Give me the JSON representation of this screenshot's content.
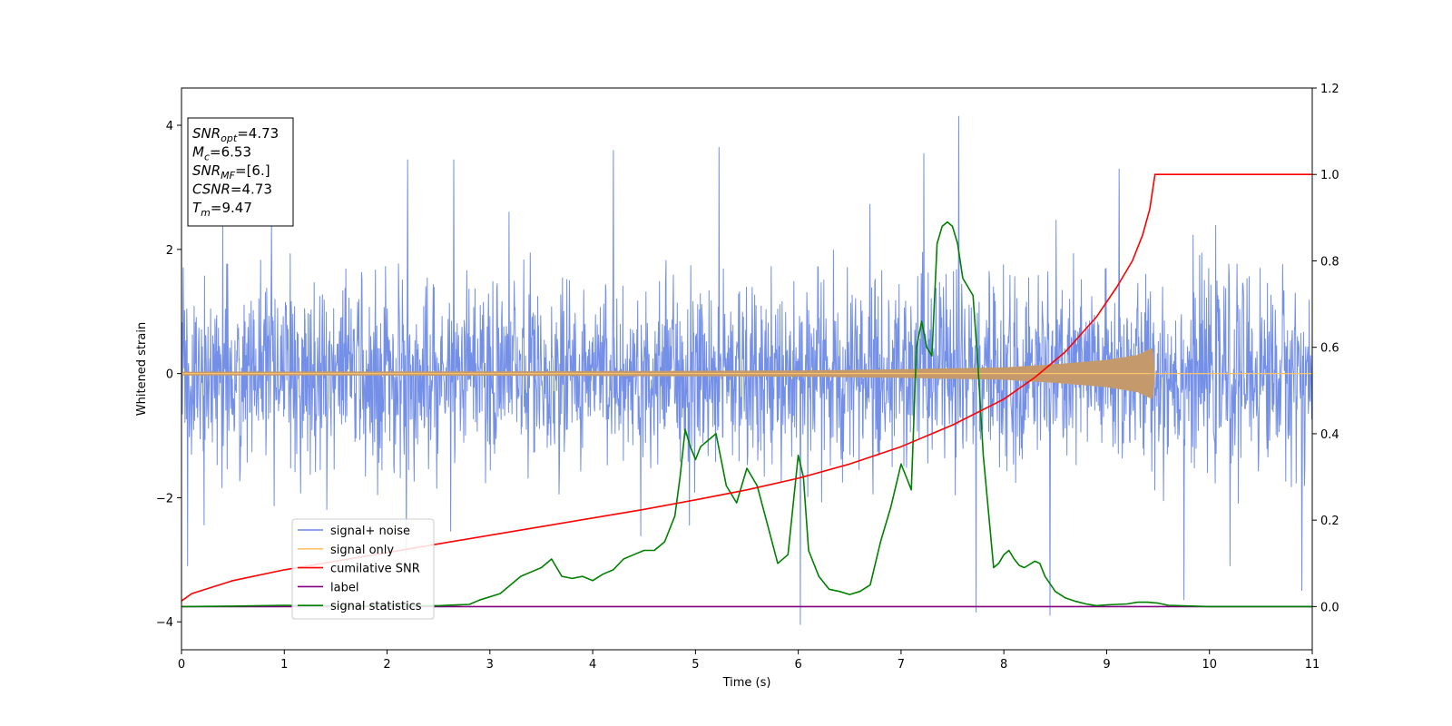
{
  "chart_data": {
    "type": "line",
    "xlabel": "Time (s)",
    "ylabel": "Whitened strain",
    "xlim": [
      0,
      11
    ],
    "ylim": [
      -4.45,
      4.6
    ],
    "y2lim": [
      -0.1,
      1.2
    ],
    "xticks": [
      "0",
      "1",
      "2",
      "3",
      "4",
      "5",
      "6",
      "7",
      "8",
      "9",
      "10",
      "11"
    ],
    "yticks": [
      "−4",
      "−2",
      "0",
      "2",
      "4"
    ],
    "y2ticks": [
      "0.0",
      "0.2",
      "0.4",
      "0.6",
      "0.8",
      "1.0",
      "1.2"
    ],
    "grid": false,
    "legend_position": "lower-left",
    "colors": {
      "noise": "#6b89e6",
      "signal": "#fdc36b",
      "signal_fill": "#c49a6c",
      "cumulative": "#ff0000",
      "label": "#800080",
      "statistics": "#008000"
    },
    "annotation": [
      {
        "sym": "SNR",
        "sub": "opt",
        "rest": "=4.73"
      },
      {
        "sym": "M",
        "sub": "c",
        "rest": "=6.53"
      },
      {
        "sym": "SNR",
        "sub": "MF",
        "rest": "=[6.]"
      },
      {
        "sym": "CSNR",
        "sub": "",
        "rest": "=4.73"
      },
      {
        "sym": "T",
        "sub": "m",
        "rest": "=9.47"
      }
    ],
    "merger_time": 9.47,
    "series": [
      {
        "name": "signal+ noise",
        "axis": "left",
        "style": "noise",
        "std": 0.75,
        "spikes": [
          {
            "x": 0.06,
            "y": -3.1
          },
          {
            "x": 0.4,
            "y": 2.5
          },
          {
            "x": 2.2,
            "y": 3.45
          },
          {
            "x": 2.65,
            "y": 3.45
          },
          {
            "x": 5.23,
            "y": 3.65
          },
          {
            "x": 6.02,
            "y": -4.05
          },
          {
            "x": 7.22,
            "y": 3.55
          },
          {
            "x": 7.56,
            "y": 4.15
          },
          {
            "x": 7.73,
            "y": -3.85
          },
          {
            "x": 8.45,
            "y": -3.9
          },
          {
            "x": 9.75,
            "y": -3.65
          },
          {
            "x": 10.2,
            "y": -3.1
          },
          {
            "x": 10.9,
            "y": -3.5
          },
          {
            "x": 4.2,
            "y": 3.6
          },
          {
            "x": 9.12,
            "y": 3.3
          }
        ]
      },
      {
        "name": "signal only",
        "axis": "left",
        "style": "signal",
        "envelope": [
          [
            0.0,
            0.03
          ],
          [
            3.0,
            0.035
          ],
          [
            6.0,
            0.05
          ],
          [
            7.0,
            0.07
          ],
          [
            8.0,
            0.1
          ],
          [
            8.5,
            0.15
          ],
          [
            9.0,
            0.22
          ],
          [
            9.3,
            0.3
          ],
          [
            9.45,
            0.42
          ],
          [
            9.47,
            0.0
          ],
          [
            11.0,
            0.0
          ]
        ]
      },
      {
        "name": "cumilative SNR",
        "axis": "right",
        "style": "cumulative",
        "x": [
          0,
          0.1,
          0.5,
          1,
          1.5,
          2,
          2.5,
          3,
          3.5,
          4,
          4.5,
          5,
          5.5,
          6,
          6.5,
          7,
          7.5,
          8,
          8.3,
          8.6,
          8.9,
          9.1,
          9.25,
          9.35,
          9.42,
          9.47,
          11
        ],
        "y": [
          0.013,
          0.03,
          0.06,
          0.085,
          0.105,
          0.125,
          0.145,
          0.165,
          0.185,
          0.205,
          0.225,
          0.247,
          0.27,
          0.297,
          0.33,
          0.37,
          0.42,
          0.48,
          0.53,
          0.59,
          0.67,
          0.74,
          0.8,
          0.86,
          0.92,
          1.0,
          1.0
        ]
      },
      {
        "name": "label",
        "axis": "right",
        "style": "label",
        "x": [
          0,
          11
        ],
        "y": [
          0,
          0
        ]
      },
      {
        "name": "signal statistics",
        "axis": "right",
        "style": "statistics",
        "x": [
          0,
          0.5,
          1,
          1.5,
          2,
          2.5,
          2.8,
          2.9,
          3.1,
          3.2,
          3.3,
          3.4,
          3.5,
          3.6,
          3.7,
          3.8,
          3.9,
          4.0,
          4.1,
          4.2,
          4.3,
          4.4,
          4.5,
          4.6,
          4.7,
          4.8,
          4.85,
          4.9,
          4.95,
          5.0,
          5.05,
          5.1,
          5.2,
          5.3,
          5.4,
          5.5,
          5.6,
          5.7,
          5.8,
          5.9,
          6.0,
          6.05,
          6.1,
          6.2,
          6.3,
          6.4,
          6.5,
          6.6,
          6.7,
          6.8,
          6.9,
          7.0,
          7.05,
          7.1,
          7.15,
          7.2,
          7.25,
          7.3,
          7.35,
          7.4,
          7.45,
          7.5,
          7.55,
          7.6,
          7.7,
          7.75,
          7.8,
          7.9,
          7.95,
          8.0,
          8.05,
          8.1,
          8.15,
          8.2,
          8.3,
          8.35,
          8.4,
          8.5,
          8.6,
          8.7,
          8.8,
          8.9,
          9.0,
          9.2,
          9.3,
          9.4,
          9.5,
          9.6,
          10.0,
          11.0
        ],
        "y": [
          0,
          0.001,
          0.003,
          0.001,
          0.002,
          0.002,
          0.005,
          0.015,
          0.03,
          0.05,
          0.07,
          0.08,
          0.09,
          0.11,
          0.07,
          0.065,
          0.07,
          0.06,
          0.075,
          0.085,
          0.11,
          0.12,
          0.13,
          0.13,
          0.15,
          0.21,
          0.3,
          0.41,
          0.37,
          0.34,
          0.37,
          0.38,
          0.4,
          0.28,
          0.24,
          0.32,
          0.28,
          0.19,
          0.1,
          0.12,
          0.35,
          0.3,
          0.13,
          0.07,
          0.04,
          0.035,
          0.028,
          0.035,
          0.05,
          0.15,
          0.23,
          0.33,
          0.3,
          0.27,
          0.6,
          0.66,
          0.6,
          0.58,
          0.84,
          0.88,
          0.89,
          0.88,
          0.84,
          0.76,
          0.72,
          0.55,
          0.35,
          0.09,
          0.1,
          0.12,
          0.13,
          0.11,
          0.095,
          0.09,
          0.105,
          0.1,
          0.07,
          0.035,
          0.02,
          0.012,
          0.006,
          0.002,
          0.004,
          0.006,
          0.01,
          0.01,
          0.008,
          0.003,
          0.0,
          0.0
        ]
      }
    ]
  }
}
